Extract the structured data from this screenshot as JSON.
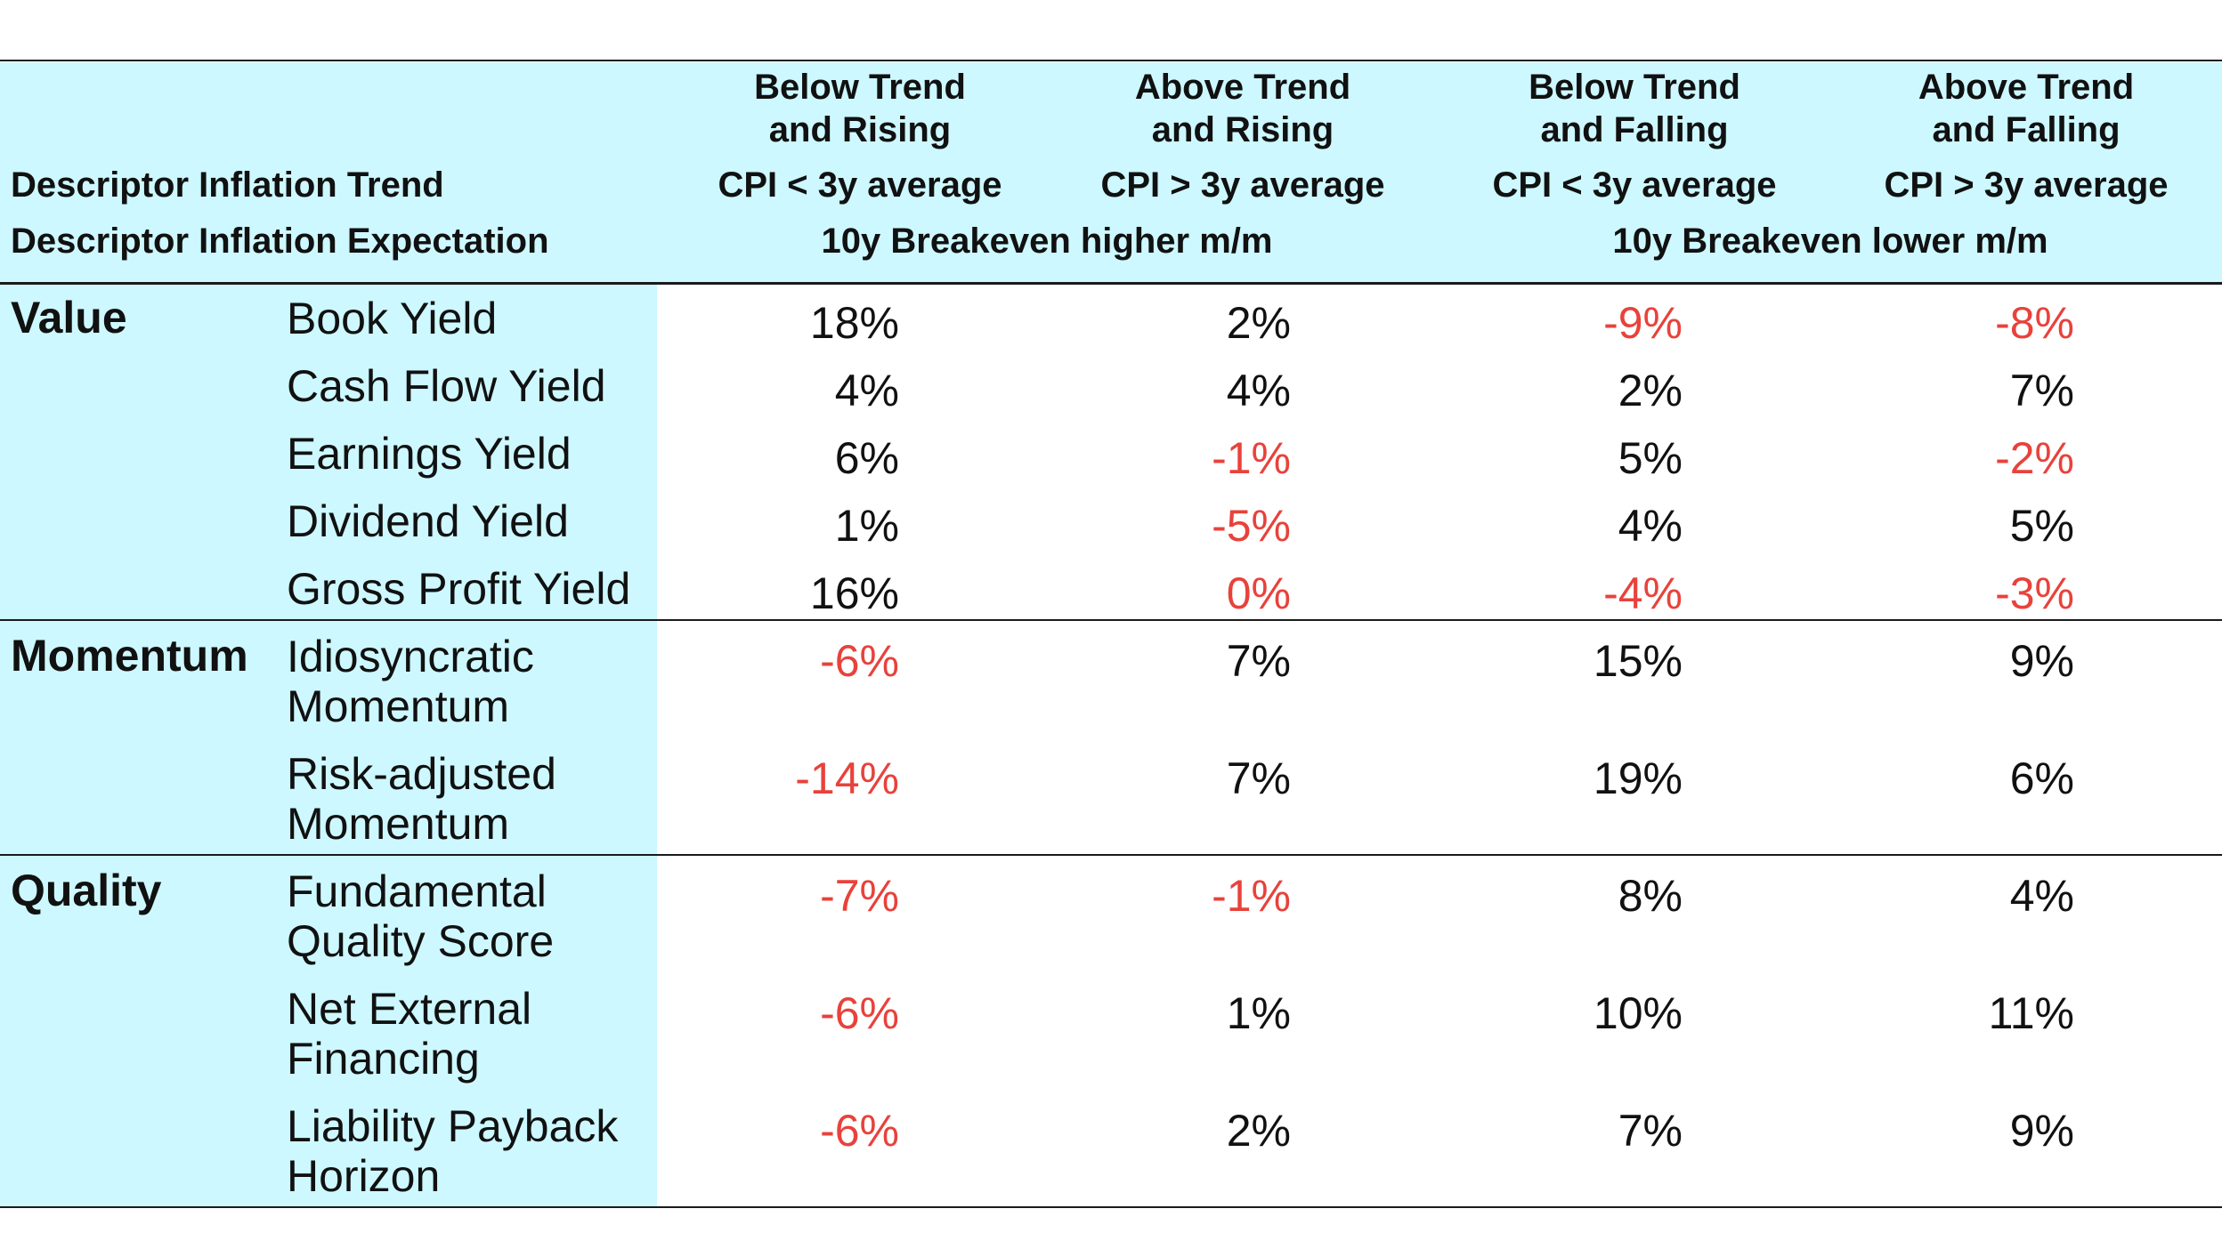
{
  "header": {
    "row_label_trend": "Descriptor Inflation Trend",
    "row_label_expectation": "Descriptor Inflation Expectation",
    "columns": [
      {
        "title": "Below Trend and Rising",
        "cpi": "CPI < 3y average"
      },
      {
        "title": "Above Trend and Rising",
        "cpi": "CPI > 3y average"
      },
      {
        "title": "Below Trend and Falling",
        "cpi": "CPI < 3y average"
      },
      {
        "title": "Above Trend and Falling",
        "cpi": "CPI > 3y average"
      }
    ],
    "expectations": [
      "10y Breakeven higher m/m",
      "10y Breakeven lower m/m"
    ]
  },
  "colors": {
    "band": "#cdf8ff",
    "negative": "#e8423b",
    "text": "#111111",
    "rule": "#1a1a1a"
  },
  "groups": [
    {
      "name": "Value",
      "rows": [
        {
          "label": "Book Yield",
          "values": [
            "18%",
            "2%",
            "-9%",
            "-8%"
          ]
        },
        {
          "label": "Cash Flow Yield",
          "values": [
            "4%",
            "4%",
            "2%",
            "7%"
          ]
        },
        {
          "label": "Earnings Yield",
          "values": [
            "6%",
            "-1%",
            "5%",
            "-2%"
          ]
        },
        {
          "label": "Dividend Yield",
          "values": [
            "1%",
            "-5%",
            "4%",
            "5%"
          ]
        },
        {
          "label": "Gross Profit Yield",
          "values": [
            "16%",
            "0%",
            "-4%",
            "-3%"
          ]
        }
      ]
    },
    {
      "name": "Momentum",
      "rows": [
        {
          "label": "Idiosyncratic Momentum",
          "values": [
            "-6%",
            "7%",
            "15%",
            "9%"
          ]
        },
        {
          "label": "Risk-adjusted Momentum",
          "values": [
            "-14%",
            "7%",
            "19%",
            "6%"
          ]
        }
      ]
    },
    {
      "name": "Quality",
      "rows": [
        {
          "label": "Fundamental Quality Score",
          "values": [
            "-7%",
            "-1%",
            "8%",
            "4%"
          ]
        },
        {
          "label": "Net External Financing",
          "values": [
            "-6%",
            "1%",
            "10%",
            "11%"
          ]
        },
        {
          "label": "Liability Payback Horizon",
          "values": [
            "-6%",
            "2%",
            "7%",
            "9%"
          ]
        }
      ]
    }
  ]
}
